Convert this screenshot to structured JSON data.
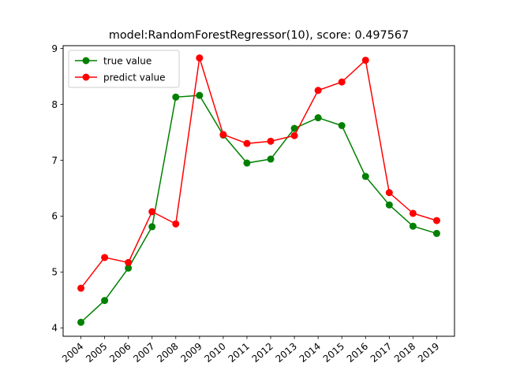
{
  "chart_data": {
    "type": "line",
    "title": "model:RandomForestRegressor(10), score: 0.497567",
    "xlabel": "",
    "ylabel": "",
    "categories": [
      "2004",
      "2005",
      "2006",
      "2007",
      "2008",
      "2009",
      "2010",
      "2011",
      "2012",
      "2013",
      "2014",
      "2015",
      "2016",
      "2017",
      "2018",
      "2019"
    ],
    "ylim": [
      3.85,
      9.05
    ],
    "yticks": [
      4,
      5,
      6,
      7,
      8,
      9
    ],
    "grid": false,
    "legend_position": "top-left",
    "series": [
      {
        "name": "true value",
        "color": "#008000",
        "values": [
          4.1,
          4.49,
          5.07,
          5.81,
          8.13,
          8.16,
          7.45,
          6.95,
          7.02,
          7.57,
          7.76,
          7.62,
          6.71,
          6.2,
          5.82,
          5.69
        ]
      },
      {
        "name": "predict value",
        "color": "#ff0000",
        "values": [
          4.71,
          5.26,
          5.17,
          6.08,
          5.86,
          8.83,
          7.46,
          7.3,
          7.34,
          7.44,
          8.25,
          8.4,
          8.79,
          6.42,
          6.05,
          5.92
        ]
      }
    ]
  }
}
